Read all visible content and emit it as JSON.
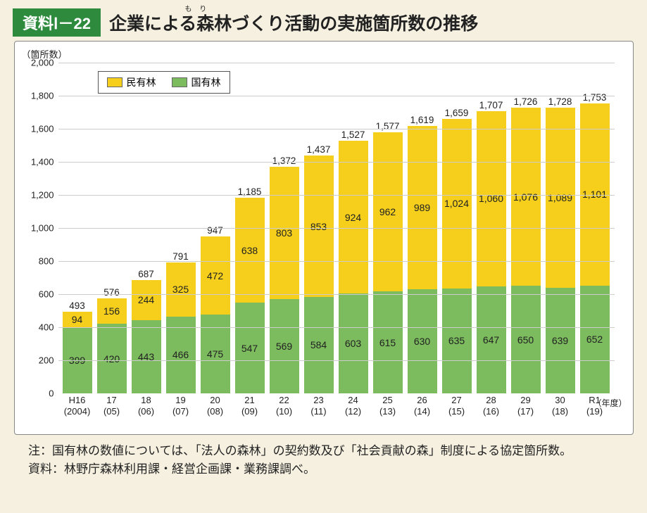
{
  "badge": "資料Ⅰ－22",
  "title": "企業による森林づくり活動の実施箇所数の推移",
  "ruby": "も り",
  "ruby_over_index": 4,
  "y_unit": "（箇所数）",
  "x_unit": "（年度）",
  "chart": {
    "type": "stacked-bar",
    "ylim": [
      0,
      2000
    ],
    "ytick_step": 200,
    "yticks": [
      "0",
      "200",
      "400",
      "600",
      "800",
      "1,000",
      "1,200",
      "1,400",
      "1,600",
      "1,800",
      "2,000"
    ],
    "grid_color": "#cccccc",
    "background": "#ffffff",
    "series": [
      {
        "name": "民有林",
        "color": "#f5cf1c",
        "key": "private"
      },
      {
        "name": "国有林",
        "color": "#7cbb5e",
        "key": "national"
      }
    ],
    "categories": [
      {
        "l1": "H16",
        "l2": "(2004)"
      },
      {
        "l1": "17",
        "l2": "(05)"
      },
      {
        "l1": "18",
        "l2": "(06)"
      },
      {
        "l1": "19",
        "l2": "(07)"
      },
      {
        "l1": "20",
        "l2": "(08)"
      },
      {
        "l1": "21",
        "l2": "(09)"
      },
      {
        "l1": "22",
        "l2": "(10)"
      },
      {
        "l1": "23",
        "l2": "(11)"
      },
      {
        "l1": "24",
        "l2": "(12)"
      },
      {
        "l1": "25",
        "l2": "(13)"
      },
      {
        "l1": "26",
        "l2": "(14)"
      },
      {
        "l1": "27",
        "l2": "(15)"
      },
      {
        "l1": "28",
        "l2": "(16)"
      },
      {
        "l1": "29",
        "l2": "(17)"
      },
      {
        "l1": "30",
        "l2": "(18)"
      },
      {
        "l1": "R1",
        "l2": "(19)"
      }
    ],
    "data": [
      {
        "national": 399,
        "private": 94,
        "total": 493
      },
      {
        "national": 420,
        "private": 156,
        "total": 576
      },
      {
        "national": 443,
        "private": 244,
        "total": 687
      },
      {
        "national": 466,
        "private": 325,
        "total": 791
      },
      {
        "national": 475,
        "private": 472,
        "total": 947
      },
      {
        "national": 547,
        "private": 638,
        "total": 1185,
        "total_fmt": "1,185"
      },
      {
        "national": 569,
        "private": 803,
        "total": 1372,
        "total_fmt": "1,372"
      },
      {
        "national": 584,
        "private": 853,
        "total": 1437,
        "total_fmt": "1,437"
      },
      {
        "national": 603,
        "private": 924,
        "total": 1527,
        "total_fmt": "1,527"
      },
      {
        "national": 615,
        "private": 962,
        "total": 1577,
        "total_fmt": "1,577"
      },
      {
        "national": 630,
        "private": 989,
        "total": 1619,
        "total_fmt": "1,619"
      },
      {
        "national": 635,
        "private": 1024,
        "private_fmt": "1,024",
        "total": 1659,
        "total_fmt": "1,659"
      },
      {
        "national": 647,
        "private": 1060,
        "private_fmt": "1,060",
        "total": 1707,
        "total_fmt": "1,707"
      },
      {
        "national": 650,
        "private": 1076,
        "private_fmt": "1,076",
        "total": 1726,
        "total_fmt": "1,726"
      },
      {
        "national": 639,
        "private": 1089,
        "private_fmt": "1,089",
        "total": 1728,
        "total_fmt": "1,728"
      },
      {
        "national": 652,
        "private": 1101,
        "private_fmt": "1,101",
        "total": 1753,
        "total_fmt": "1,753"
      }
    ]
  },
  "notes": {
    "note_label": "注：",
    "note_text": "国有林の数値については、「法人の森林」の契約数及び「社会貢献の森」制度による協定箇所数。",
    "source_label": "資料：",
    "source_text": "林野庁森林利用課・経営企画課・業務課調べ。"
  }
}
